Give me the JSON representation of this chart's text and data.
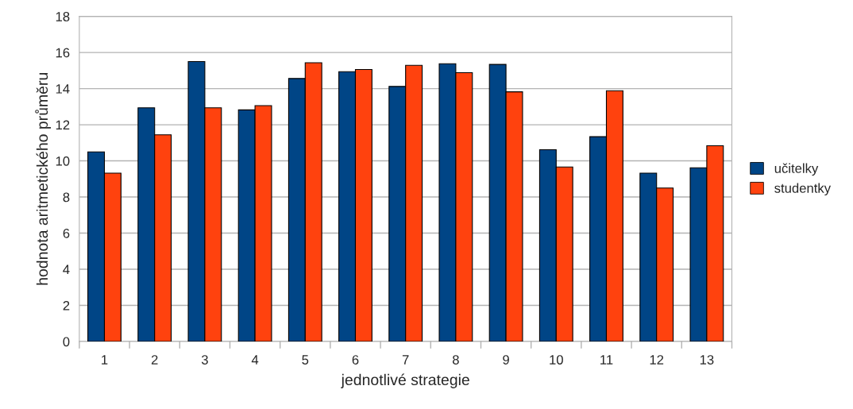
{
  "chart_data": {
    "type": "bar",
    "xlabel": "jednotlivé strategie",
    "ylabel": "hodnota aritmetického průměru",
    "categories": [
      "1",
      "2",
      "3",
      "4",
      "5",
      "6",
      "7",
      "8",
      "9",
      "10",
      "11",
      "12",
      "13"
    ],
    "series": [
      {
        "name": "učitelky",
        "color": "#004586",
        "values": [
          10.5,
          12.94,
          15.5,
          12.82,
          14.56,
          14.94,
          14.12,
          15.38,
          15.34,
          10.62,
          11.34,
          9.32,
          9.62
        ]
      },
      {
        "name": "studentky",
        "color": "#ff420e",
        "values": [
          9.32,
          11.44,
          12.94,
          13.06,
          15.43,
          15.06,
          15.29,
          14.88,
          13.82,
          9.66,
          13.88,
          8.5,
          10.84
        ]
      }
    ],
    "ylim": [
      0,
      18
    ],
    "yticks": [
      0,
      2,
      4,
      6,
      8,
      10,
      12,
      14,
      16,
      18
    ],
    "grid": "y",
    "legend": "right"
  }
}
